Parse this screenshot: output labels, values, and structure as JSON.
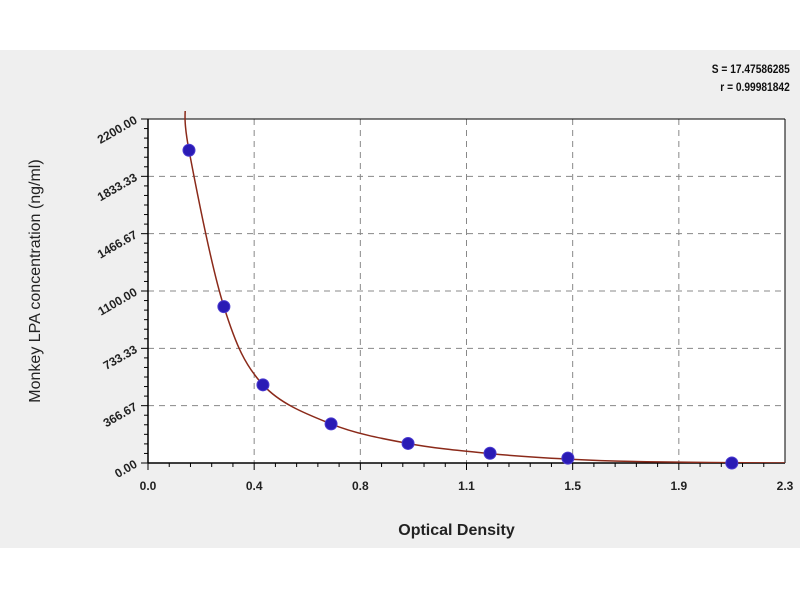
{
  "stats": {
    "s": "S = 17.47586285",
    "r": "r = 0.99981842"
  },
  "chart_data": {
    "type": "scatter",
    "title": "",
    "xlabel": "Optical Density",
    "ylabel": "Monkey LPA concentration (ng/ml)",
    "xlim": [
      0,
      2.3
    ],
    "ylim": [
      0,
      2200
    ],
    "x_ticks": [
      "0.0",
      "0.4",
      "0.8",
      "1.1",
      "1.5",
      "1.9",
      "2.3"
    ],
    "y_ticks": [
      "0.00",
      "366.67",
      "733.33",
      "1100.00",
      "1466.67",
      "1833.33",
      "2200.00"
    ],
    "grid": true,
    "points": [
      {
        "x": 0.148,
        "y": 2000
      },
      {
        "x": 0.274,
        "y": 1000
      },
      {
        "x": 0.415,
        "y": 500
      },
      {
        "x": 0.661,
        "y": 250
      },
      {
        "x": 0.939,
        "y": 125
      },
      {
        "x": 1.235,
        "y": 62.5
      },
      {
        "x": 1.516,
        "y": 31.25
      },
      {
        "x": 2.108,
        "y": 0
      }
    ],
    "fit_curve": [
      {
        "x": 0.135,
        "y": 2300
      },
      {
        "x": 0.148,
        "y": 2000
      },
      {
        "x": 0.274,
        "y": 1000
      },
      {
        "x": 0.415,
        "y": 500
      },
      {
        "x": 0.661,
        "y": 250
      },
      {
        "x": 0.939,
        "y": 125
      },
      {
        "x": 1.235,
        "y": 60
      },
      {
        "x": 1.516,
        "y": 25
      },
      {
        "x": 1.8,
        "y": 8
      },
      {
        "x": 2.3,
        "y": 0
      }
    ],
    "colors": {
      "points": "#2a1bb5",
      "curve": "#8b2a1a",
      "grid": "#888888"
    }
  }
}
